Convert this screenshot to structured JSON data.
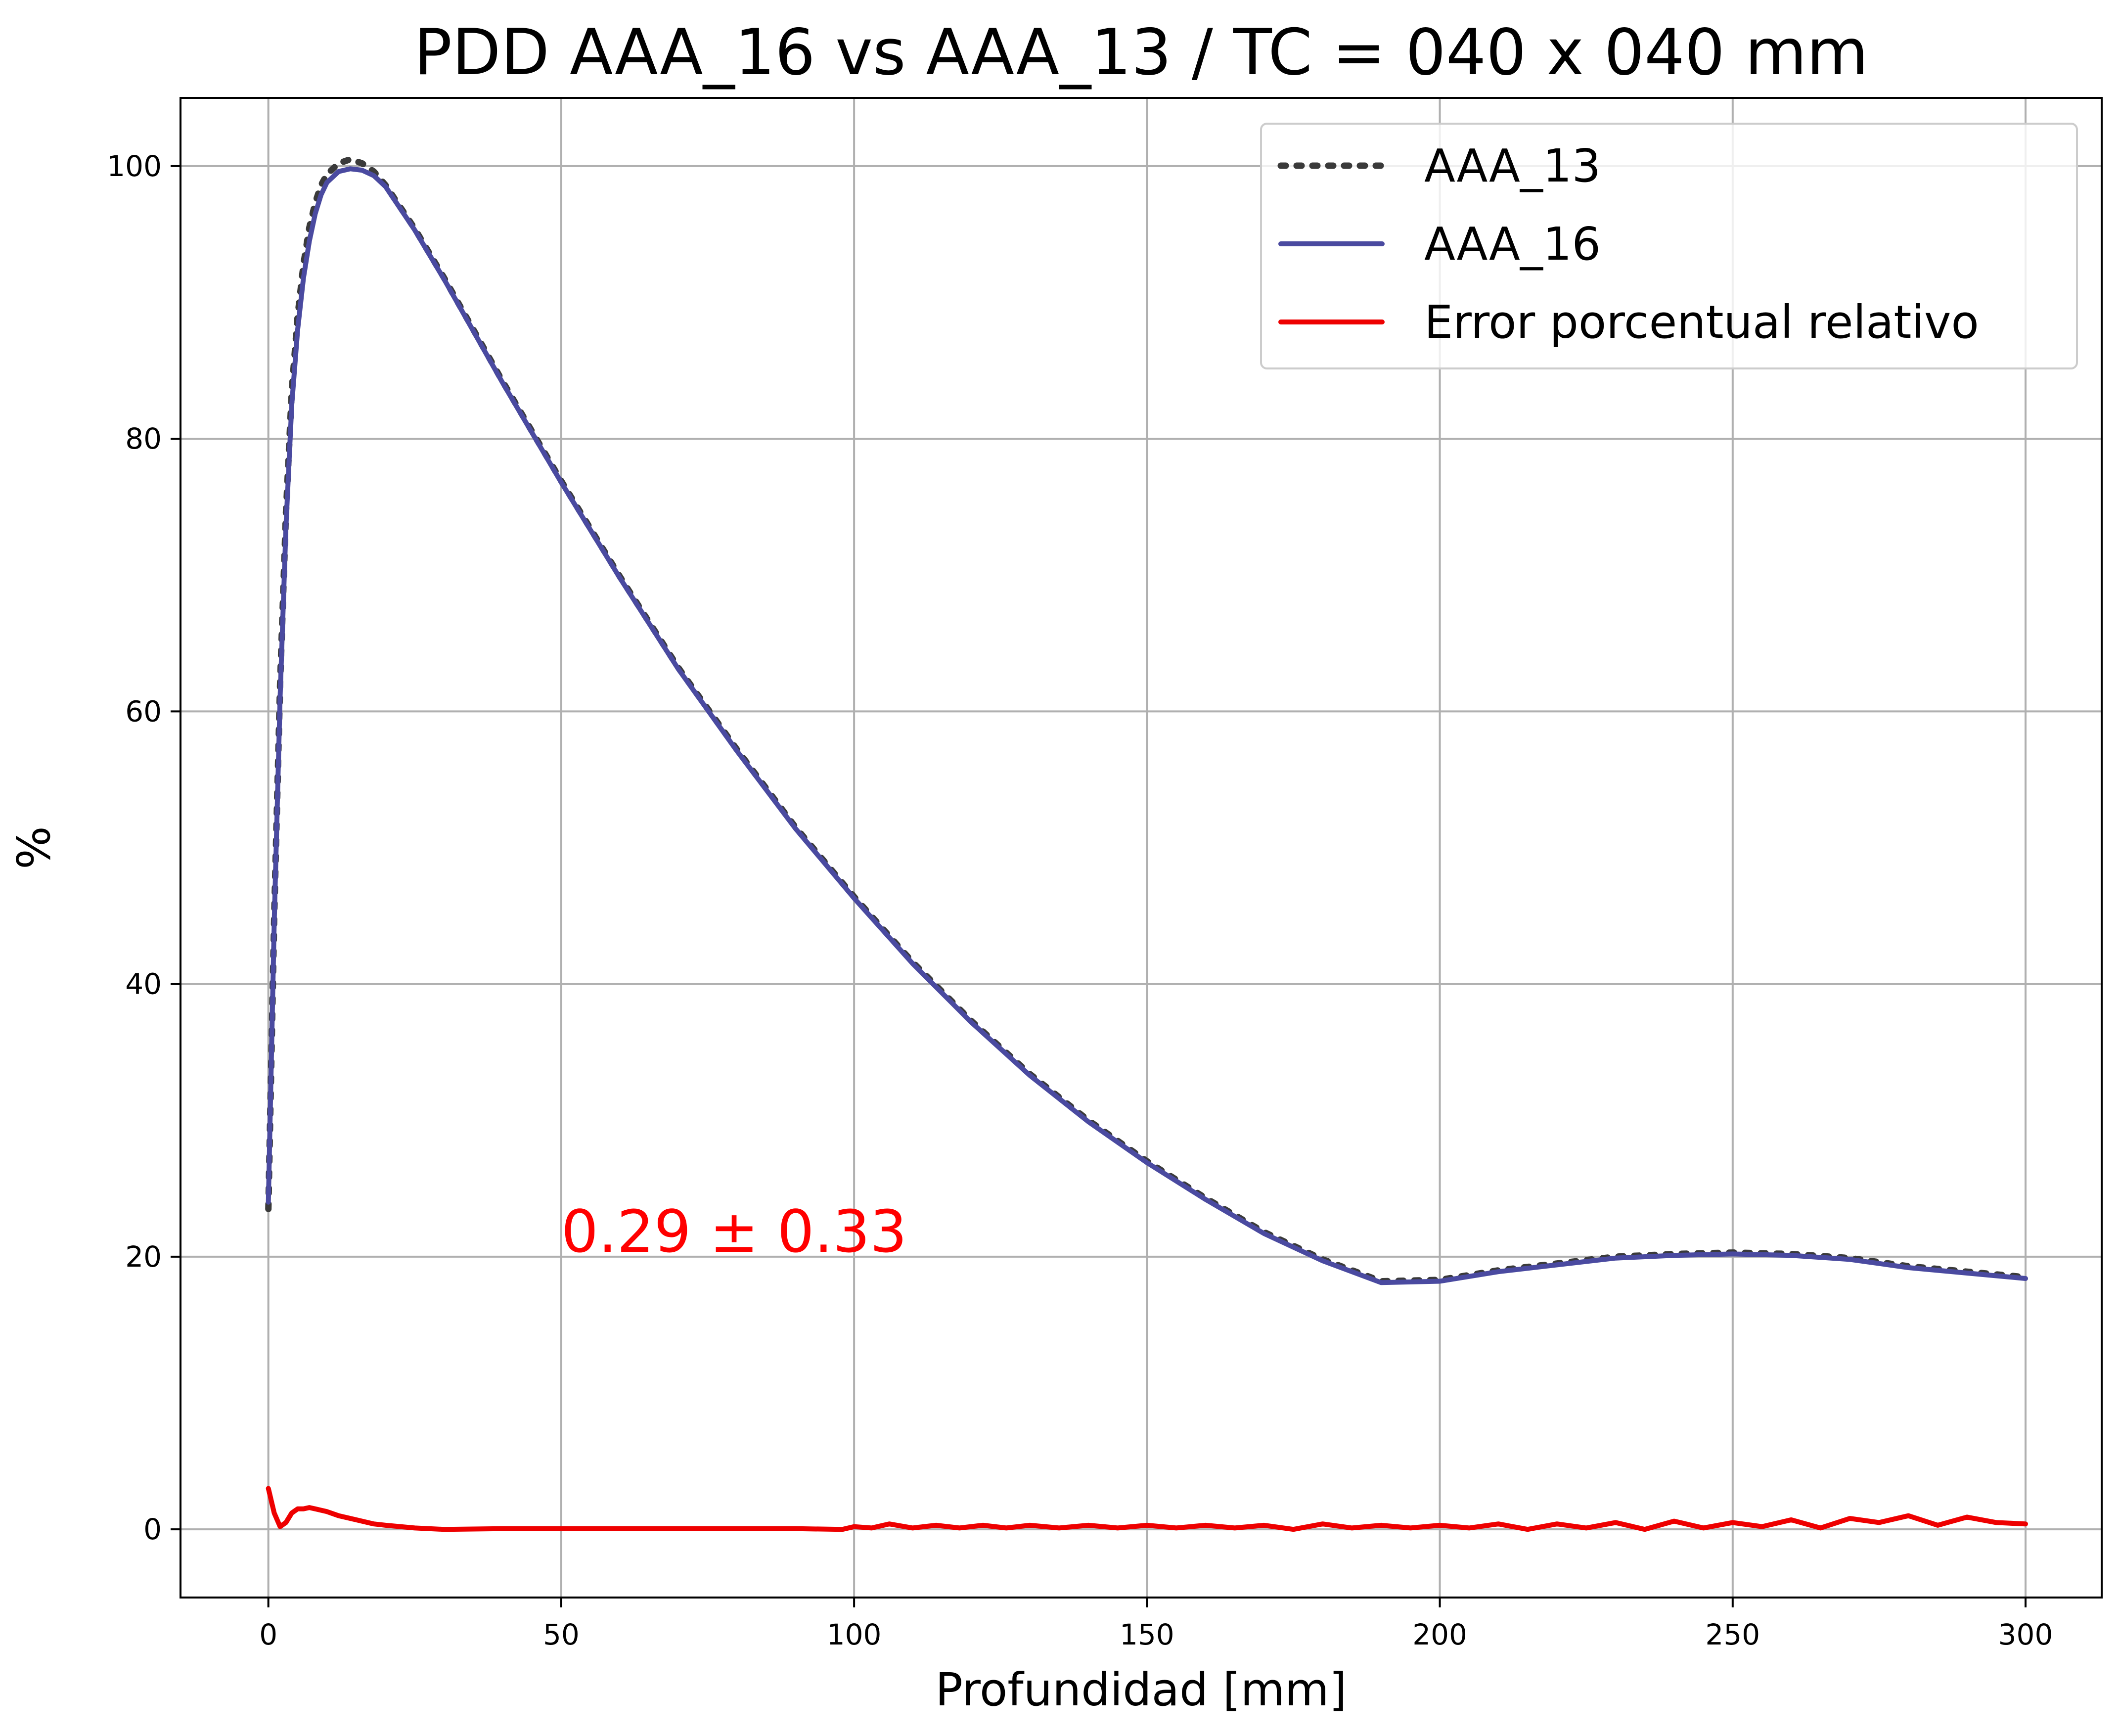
{
  "chart_data": {
    "type": "line",
    "title": "PDD AAA_16 vs AAA_13 / TC = 040 x 040 mm",
    "xlabel": "Profundidad [mm]",
    "ylabel": "%",
    "xlim": [
      -15,
      313
    ],
    "ylim": [
      -5,
      105
    ],
    "xticks": [
      0,
      50,
      100,
      150,
      200,
      250,
      300
    ],
    "yticks": [
      0,
      20,
      40,
      60,
      80,
      100
    ],
    "grid": true,
    "legend_position": "top-right",
    "annotation": {
      "text": "0.29 ± 0.33",
      "x": 50,
      "y": 20,
      "color": "#ff0000"
    },
    "series": [
      {
        "name": "AAA_13",
        "style": "dotted",
        "color": "#3a3a3a",
        "x": [
          0,
          1,
          2,
          3,
          4,
          5,
          6,
          7,
          8,
          9,
          10,
          12,
          14,
          16,
          18,
          20,
          25,
          30,
          40,
          50,
          60,
          70,
          80,
          90,
          100,
          110,
          120,
          130,
          140,
          150,
          160,
          170,
          180,
          190,
          200,
          210,
          220,
          230,
          240,
          250,
          260,
          270,
          280,
          290,
          300
        ],
        "values": [
          23.5,
          45.0,
          62.0,
          74.5,
          83.5,
          89.0,
          92.8,
          95.5,
          97.3,
          98.6,
          99.4,
          100.2,
          100.5,
          100.2,
          99.6,
          98.6,
          95.4,
          91.8,
          84.2,
          76.9,
          69.9,
          63.2,
          57.2,
          51.5,
          46.4,
          41.6,
          37.3,
          33.4,
          30.0,
          27.0,
          24.3,
          21.8,
          19.8,
          18.2,
          18.3,
          19.0,
          19.5,
          20.0,
          20.2,
          20.3,
          20.2,
          19.9,
          19.3,
          18.9,
          18.5
        ]
      },
      {
        "name": "AAA_16",
        "style": "solid",
        "color": "#4a4aa0",
        "x": [
          0,
          1,
          2,
          3,
          4,
          5,
          6,
          7,
          8,
          9,
          10,
          12,
          14,
          16,
          18,
          20,
          25,
          30,
          40,
          50,
          60,
          70,
          80,
          90,
          100,
          110,
          120,
          130,
          140,
          150,
          160,
          170,
          180,
          190,
          200,
          210,
          220,
          230,
          240,
          250,
          260,
          270,
          280,
          290,
          300
        ],
        "values": [
          24.0,
          44.5,
          61.0,
          73.5,
          82.5,
          88.0,
          91.8,
          94.5,
          96.5,
          97.9,
          98.8,
          99.6,
          99.8,
          99.7,
          99.3,
          98.5,
          95.3,
          91.7,
          84.1,
          76.8,
          69.8,
          63.1,
          57.1,
          51.4,
          46.3,
          41.5,
          37.2,
          33.3,
          29.9,
          26.9,
          24.2,
          21.7,
          19.7,
          18.1,
          18.2,
          18.9,
          19.4,
          19.9,
          20.1,
          20.2,
          20.1,
          19.8,
          19.2,
          18.8,
          18.4
        ]
      },
      {
        "name": "Error porcentual relativo",
        "style": "solid",
        "color": "#ee0000",
        "x": [
          0,
          1,
          2,
          3,
          4,
          5,
          6,
          7,
          8,
          10,
          12,
          15,
          18,
          20,
          25,
          30,
          40,
          50,
          60,
          70,
          80,
          90,
          98,
          100,
          103,
          106,
          110,
          114,
          118,
          122,
          126,
          130,
          135,
          140,
          145,
          150,
          155,
          160,
          165,
          170,
          175,
          180,
          185,
          190,
          195,
          200,
          205,
          210,
          215,
          220,
          225,
          230,
          235,
          240,
          245,
          250,
          255,
          260,
          265,
          270,
          275,
          280,
          285,
          290,
          295,
          300
        ],
        "values": [
          3.0,
          1.2,
          0.2,
          0.5,
          1.2,
          1.5,
          1.5,
          1.6,
          1.5,
          1.3,
          1.0,
          0.7,
          0.4,
          0.3,
          0.1,
          0.0,
          0.05,
          0.05,
          0.05,
          0.05,
          0.05,
          0.05,
          0.0,
          0.2,
          0.1,
          0.4,
          0.1,
          0.3,
          0.1,
          0.3,
          0.1,
          0.3,
          0.1,
          0.3,
          0.1,
          0.3,
          0.1,
          0.3,
          0.1,
          0.3,
          0.0,
          0.4,
          0.1,
          0.3,
          0.1,
          0.3,
          0.1,
          0.4,
          0.0,
          0.4,
          0.1,
          0.5,
          0.0,
          0.6,
          0.1,
          0.5,
          0.2,
          0.7,
          0.1,
          0.8,
          0.5,
          1.0,
          0.3,
          0.9,
          0.5,
          0.4
        ]
      }
    ]
  }
}
